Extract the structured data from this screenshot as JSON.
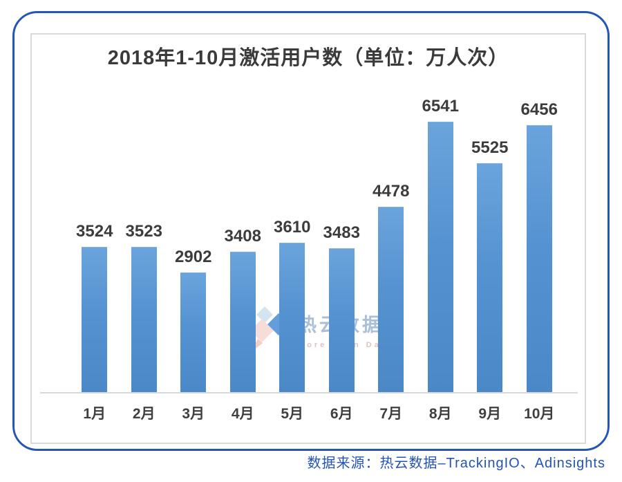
{
  "chart_data": {
    "type": "bar",
    "title": "2018年1-10月激活用户数（单位：万人次）",
    "categories": [
      "1月",
      "2月",
      "3月",
      "4月",
      "5月",
      "6月",
      "7月",
      "8月",
      "9月",
      "10月"
    ],
    "values": [
      3524,
      3523,
      2902,
      3408,
      3610,
      3483,
      4478,
      6541,
      5525,
      6456
    ],
    "xlabel": "",
    "ylabel": "",
    "unit": "万人次",
    "ylim": [
      0,
      7000
    ],
    "grid": false,
    "legend": "none",
    "value_labels_shown": true,
    "bar_color": "#5592d1"
  },
  "frame": {
    "border_color": "#2356b6",
    "panel_border_color": "#d9d9d9"
  },
  "watermark": {
    "logo_icon": "reyun-diamonds-icon",
    "brand": "热云数据",
    "tagline": "More Than Data"
  },
  "source": {
    "text": "数据来源：热云数据–TrackingIO、Adinsights",
    "color": "#2353b5"
  }
}
